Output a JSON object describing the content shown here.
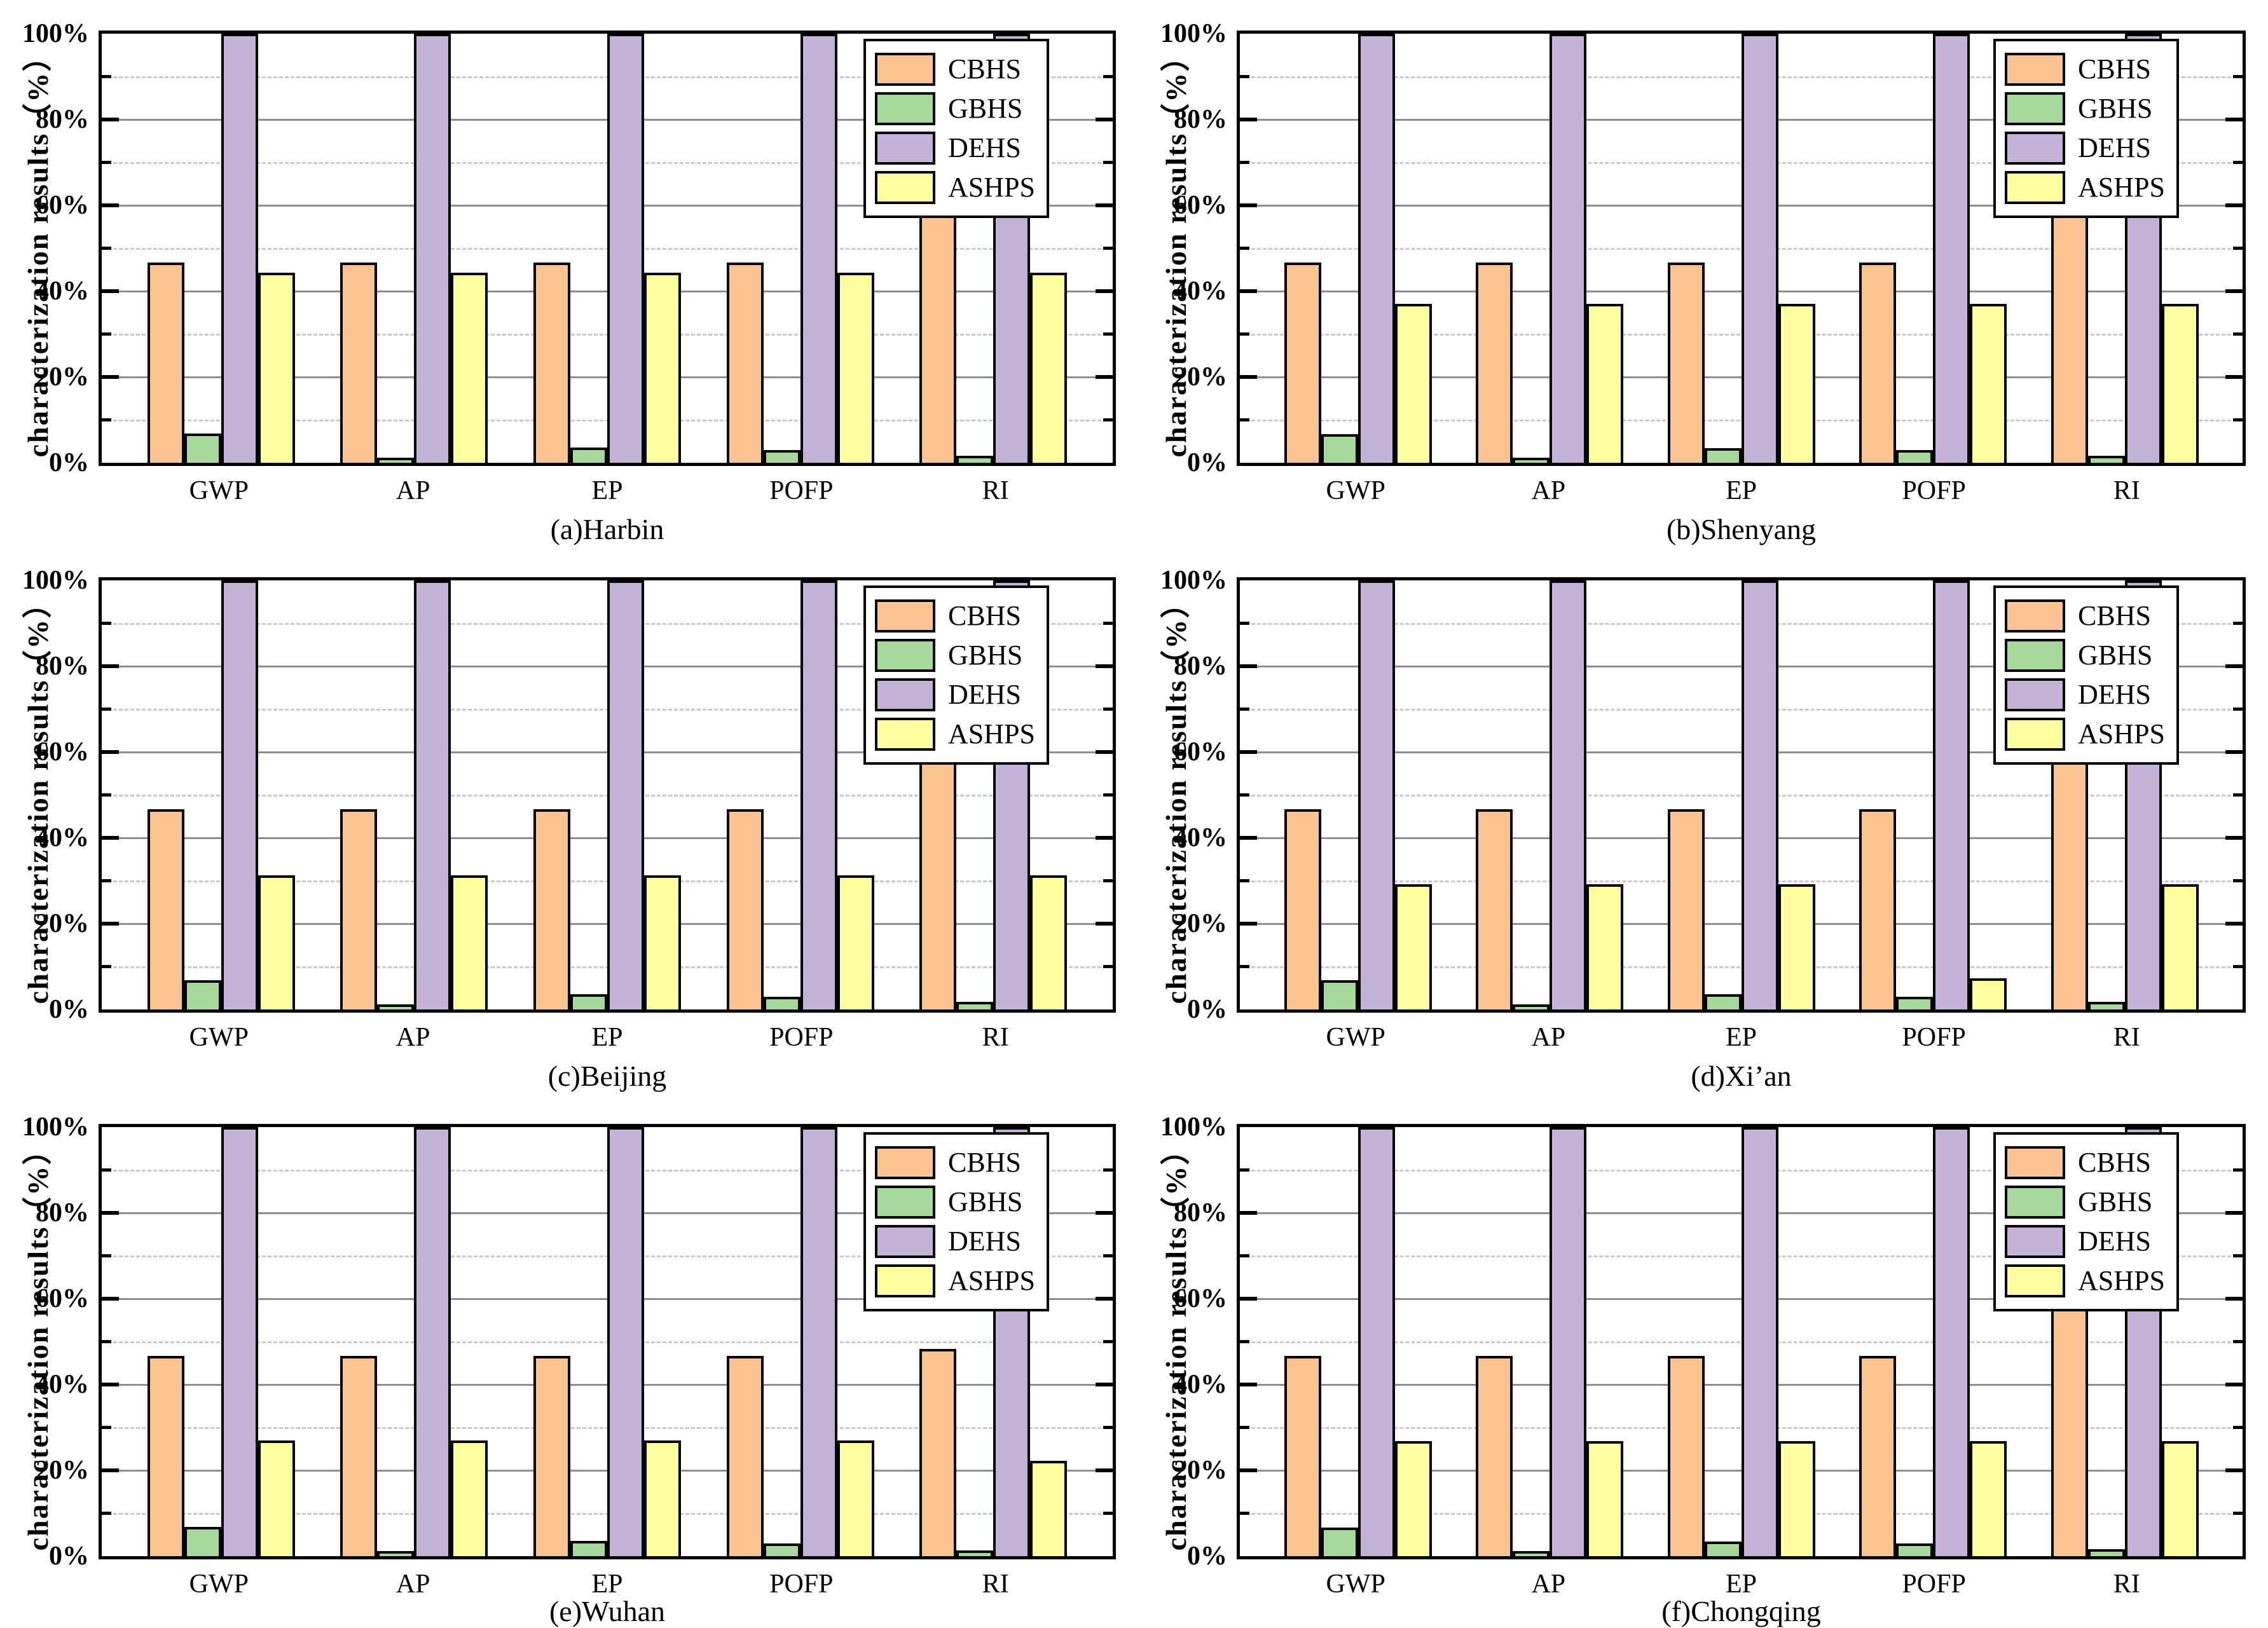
{
  "figure": {
    "ylabel": "characterization results（%）",
    "y_ticks": [
      "0%",
      "20%",
      "40%",
      "60%",
      "80%",
      "100%"
    ],
    "categories": [
      "GWP",
      "AP",
      "EP",
      "POFP",
      "RI"
    ],
    "legend": [
      "CBHS",
      "GBHS",
      "DEHS",
      "ASHPS"
    ],
    "colors": {
      "CBHS": "#FAC392",
      "GBHS": "#A6D89B",
      "DEHS": "#C4B2D8",
      "ASHPS": "#FEFE9E",
      "bar_border": "#000000",
      "grid_major": "#8f8f8f",
      "grid_minor": "#c9c9c9"
    }
  },
  "chart_data": [
    {
      "type": "bar",
      "title": "(a)Harbin",
      "ylabel": "characterization results（%）",
      "ylim": [
        0,
        100
      ],
      "grid": true,
      "legend_position": "top-right",
      "categories": [
        "GWP",
        "AP",
        "EP",
        "POFP",
        "RI"
      ],
      "series": [
        {
          "name": "CBHS",
          "values": [
            46.6,
            46.6,
            46.6,
            46.6,
            58.5
          ]
        },
        {
          "name": "GBHS",
          "values": [
            6.8,
            1.2,
            3.5,
            3.0,
            1.6
          ]
        },
        {
          "name": "DEHS",
          "values": [
            100,
            100,
            100,
            100,
            100
          ]
        },
        {
          "name": "ASHPS",
          "values": [
            44.3,
            44.3,
            44.3,
            44.3,
            44.3
          ]
        }
      ]
    },
    {
      "type": "bar",
      "title": "(b)Shenyang",
      "ylabel": "characterization results（%）",
      "ylim": [
        0,
        100
      ],
      "grid": true,
      "legend_position": "top-right",
      "categories": [
        "GWP",
        "AP",
        "EP",
        "POFP",
        "RI"
      ],
      "series": [
        {
          "name": "CBHS",
          "values": [
            46.6,
            46.6,
            46.6,
            46.6,
            58.5
          ]
        },
        {
          "name": "GBHS",
          "values": [
            6.6,
            1.2,
            3.4,
            3.0,
            1.6
          ]
        },
        {
          "name": "DEHS",
          "values": [
            100,
            100,
            100,
            100,
            100
          ]
        },
        {
          "name": "ASHPS",
          "values": [
            37.0,
            37.0,
            37.0,
            37.0,
            37.0
          ]
        }
      ]
    },
    {
      "type": "bar",
      "title": "(c)Beijing",
      "ylabel": "characterization results（%）",
      "ylim": [
        0,
        100
      ],
      "grid": true,
      "legend_position": "top-right",
      "categories": [
        "GWP",
        "AP",
        "EP",
        "POFP",
        "RI"
      ],
      "series": [
        {
          "name": "CBHS",
          "values": [
            46.6,
            46.6,
            46.6,
            46.6,
            58.5
          ]
        },
        {
          "name": "GBHS",
          "values": [
            6.8,
            1.2,
            3.5,
            3.0,
            1.8
          ]
        },
        {
          "name": "DEHS",
          "values": [
            100,
            100,
            100,
            100,
            100
          ]
        },
        {
          "name": "ASHPS",
          "values": [
            31.3,
            31.3,
            31.3,
            31.3,
            31.3
          ]
        }
      ]
    },
    {
      "type": "bar",
      "title": "(d)Xi’an",
      "ylabel": "characterization results（%）",
      "ylim": [
        0,
        100
      ],
      "grid": true,
      "legend_position": "top-right",
      "categories": [
        "GWP",
        "AP",
        "EP",
        "POFP",
        "RI"
      ],
      "series": [
        {
          "name": "CBHS",
          "values": [
            46.6,
            46.6,
            46.6,
            46.6,
            58.5
          ]
        },
        {
          "name": "GBHS",
          "values": [
            6.8,
            1.2,
            3.6,
            3.0,
            1.8
          ]
        },
        {
          "name": "DEHS",
          "values": [
            100,
            100,
            100,
            100,
            100
          ]
        },
        {
          "name": "ASHPS",
          "values": [
            29.2,
            29.2,
            29.2,
            7.3,
            29.2
          ]
        }
      ]
    },
    {
      "type": "bar",
      "title": "(e)Wuhan",
      "ylabel": "characterization results（%）",
      "ylim": [
        0,
        100
      ],
      "grid": true,
      "legend_position": "top-right",
      "categories": [
        "GWP",
        "AP",
        "EP",
        "POFP",
        "RI"
      ],
      "series": [
        {
          "name": "CBHS",
          "values": [
            46.6,
            46.6,
            46.6,
            46.6,
            48.3
          ]
        },
        {
          "name": "GBHS",
          "values": [
            6.8,
            1.2,
            3.5,
            3.0,
            1.3
          ]
        },
        {
          "name": "DEHS",
          "values": [
            100,
            100,
            100,
            100,
            100
          ]
        },
        {
          "name": "ASHPS",
          "values": [
            27.0,
            27.0,
            27.0,
            27.0,
            22.2
          ]
        }
      ]
    },
    {
      "type": "bar",
      "title": "(f)Chongqing",
      "ylabel": "characterization results（%）",
      "ylim": [
        0,
        100
      ],
      "grid": true,
      "legend_position": "top-right",
      "categories": [
        "GWP",
        "AP",
        "EP",
        "POFP",
        "RI"
      ],
      "series": [
        {
          "name": "CBHS",
          "values": [
            46.6,
            46.6,
            46.6,
            46.6,
            58.5
          ]
        },
        {
          "name": "GBHS",
          "values": [
            6.6,
            1.2,
            3.4,
            3.0,
            1.7
          ]
        },
        {
          "name": "DEHS",
          "values": [
            100,
            100,
            100,
            100,
            100
          ]
        },
        {
          "name": "ASHPS",
          "values": [
            26.8,
            26.8,
            26.8,
            26.8,
            26.8
          ]
        }
      ]
    }
  ]
}
